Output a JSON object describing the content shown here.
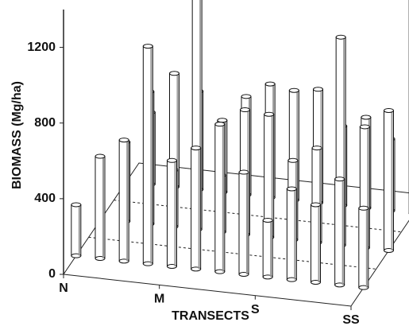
{
  "chart_data": {
    "type": "bar3d",
    "ylabel": "BIOMASS  (Mg/ha)",
    "xlabel": "TRANSECTS",
    "categories": [
      "N",
      null,
      null,
      null,
      "M",
      null,
      null,
      null,
      "S",
      null,
      null,
      null,
      "SS"
    ],
    "ylim": [
      0,
      1400
    ],
    "yticks": [
      0,
      400,
      800,
      1200
    ],
    "color": "#ffffff",
    "series": [
      {
        "values": [
          270,
          540,
          640,
          1150,
          560,
          640,
          780,
          540,
          300,
          480,
          410,
          560,
          420
        ]
      },
      {
        "values": [
          null,
          420,
          700,
          300,
          1360,
          300,
          660,
          650,
          420,
          500,
          1100,
          640,
          740
        ]
      },
      {
        "values": [
          null,
          380,
          600,
          520,
          380,
          520,
          600,
          580,
          600,
          420,
          480,
          380,
          1290
        ]
      }
    ]
  }
}
